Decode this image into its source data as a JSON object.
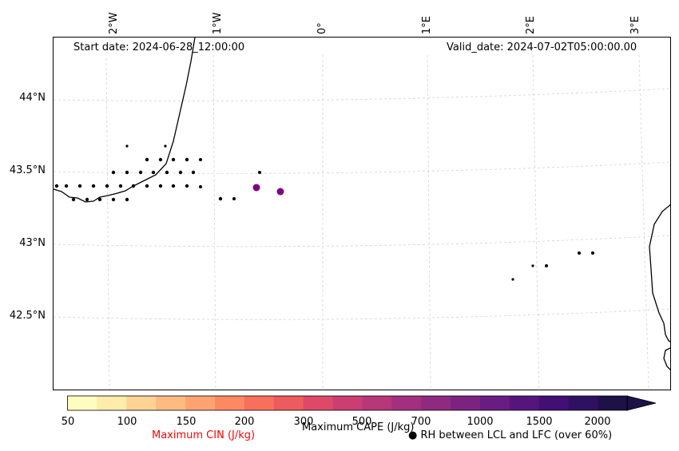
{
  "map": {
    "start_date_text": "Start date: 2024-06-28_12:00:00",
    "valid_date_text": "Valid_date: 2024-07-02T05:00:00.00",
    "lon_labels": [
      "2°W",
      "1°W",
      "0°",
      "1°E",
      "2°E",
      "3°E"
    ],
    "lat_labels": [
      "44°N",
      "43.5°N",
      "43°N",
      "42.5°N"
    ],
    "grid_color": "#d3d3d3",
    "coast_color": "#000000",
    "markers": {
      "rh_dot_color": "#000000",
      "cape_dot_color": "#800080"
    }
  },
  "colorbar": {
    "ticks": [
      "50",
      "100",
      "150",
      "200",
      "300",
      "500",
      "700",
      "1000",
      "1500",
      "2000"
    ],
    "colors": [
      "#fefdbf",
      "#feecab",
      "#fed395",
      "#febb81",
      "#fea36f",
      "#fc8961",
      "#f7705c",
      "#ee5b5e",
      "#de4968",
      "#ca3e72",
      "#b73779",
      "#a3307e",
      "#8f2a81",
      "#7c2382",
      "#691c81",
      "#56147d",
      "#420f75",
      "#2e1163",
      "#1d1147"
    ],
    "cape_label": "Maximum CAPE (J/kg)",
    "cin_label": "Maximum CIN (J/kg)",
    "cin_label_color": "#ff0000",
    "rh_legend_label": "RH between LCL and LFC (over 60%)",
    "rh_legend_symbol": "●"
  }
}
